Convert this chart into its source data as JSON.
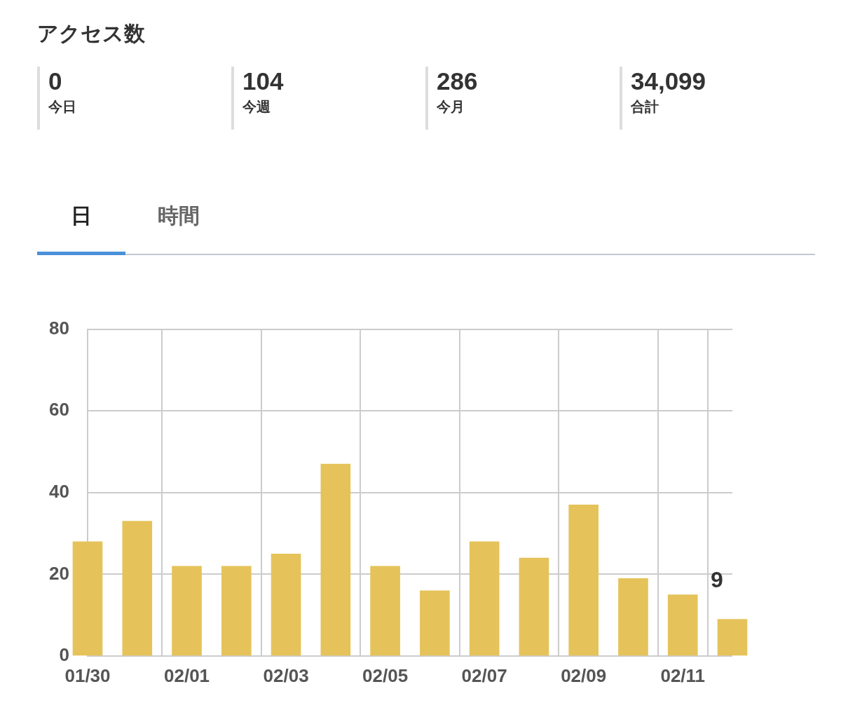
{
  "chart_data": [
    {
      "type": "other",
      "title": "アクセス数",
      "categories": [
        "今日",
        "今週",
        "今月",
        "合計"
      ],
      "value_labels": [
        "0",
        "104",
        "286",
        "34,099"
      ]
    },
    {
      "type": "bar",
      "annotations": [
        "日",
        "時間"
      ],
      "categories": [
        "01/30",
        null,
        "02/01",
        null,
        "02/03",
        null,
        "02/05",
        null,
        "02/07",
        null,
        "02/09",
        null,
        "02/11",
        null
      ],
      "series": [
        {
          "color": "#e5c35a",
          "values": [
            28,
            33,
            22,
            22,
            25,
            47,
            22,
            16,
            28,
            24,
            37,
            19,
            15,
            9
          ]
        }
      ],
      "value_labels": [
        null,
        null,
        null,
        null,
        null,
        null,
        null,
        null,
        null,
        null,
        null,
        null,
        null,
        "9"
      ],
      "ylim": [
        0,
        80
      ],
      "yticks": [
        0,
        20,
        40,
        60,
        80
      ],
      "grid": true,
      "legend": false
    }
  ]
}
